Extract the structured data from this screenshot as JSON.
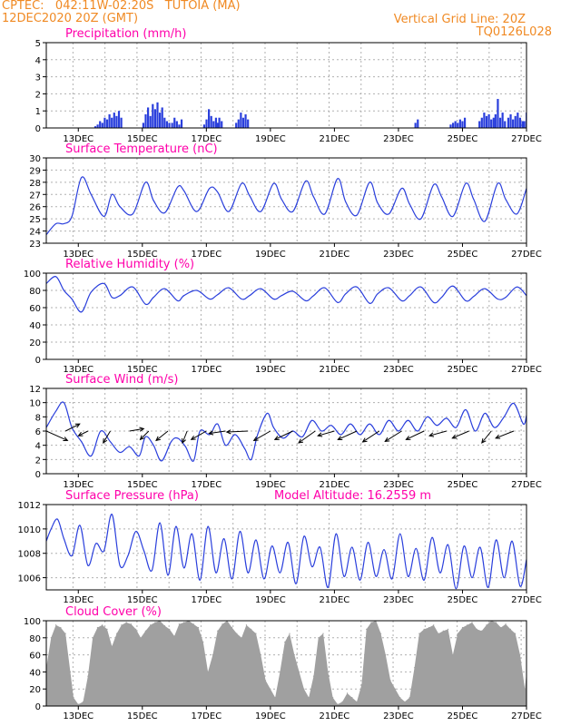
{
  "header": {
    "line1_left": "CPTEC:   042:11W-02:20S   TUTOIA (MA)",
    "line2_left": "12DEC2020 20Z (GMT)",
    "line1_right": "Vertical Grid Line: 20Z",
    "line2_right": "TQ0126L028"
  },
  "colors": {
    "line": "#2a3fdc",
    "title": "#ff00aa",
    "header": "#f08a24",
    "cloud": "#a0a0a0",
    "grid": "#b0b0b0"
  },
  "x_ticks": [
    "13DEC",
    "15DEC",
    "17DEC",
    "19DEC",
    "21DEC",
    "23DEC",
    "25DEC",
    "27DEC"
  ],
  "chart_data": [
    {
      "type": "bar",
      "title": "Precipitation (mm/h)",
      "ylim": [
        0,
        5
      ],
      "yticks": [
        "0",
        "1",
        "2",
        "3",
        "4",
        "5"
      ],
      "grid": true,
      "bursts": [
        {
          "day": 13.5,
          "values": [
            0.1,
            0.2,
            0.4,
            0.3,
            0.6,
            0.5,
            0.8,
            0.6,
            0.9,
            0.7,
            1.0,
            0.6
          ]
        },
        {
          "day": 15.0,
          "values": [
            0.3,
            0.8,
            1.2,
            0.7,
            1.4,
            1.1,
            1.5,
            0.9,
            1.2,
            0.6,
            0.4,
            0.3
          ]
        },
        {
          "day": 15.9,
          "values": [
            0.3,
            0.6,
            0.4,
            0.2,
            0.5
          ]
        },
        {
          "day": 16.9,
          "values": [
            0.2,
            0.5,
            1.1,
            0.7,
            0.4,
            0.6,
            0.3
          ]
        },
        {
          "day": 17.3,
          "values": [
            0.3,
            0.6,
            0.4
          ]
        },
        {
          "day": 17.9,
          "values": [
            0.3,
            0.5,
            0.9,
            0.6,
            0.8,
            0.5
          ]
        },
        {
          "day": 23.5,
          "values": [
            0.3,
            0.5
          ]
        },
        {
          "day": 24.6,
          "values": [
            0.2,
            0.3,
            0.4,
            0.3,
            0.5,
            0.4,
            0.6
          ]
        },
        {
          "day": 25.5,
          "values": [
            0.4,
            0.6,
            0.9,
            0.7,
            0.8,
            0.5,
            0.6
          ]
        },
        {
          "day": 26.0,
          "values": [
            0.8,
            1.7,
            0.6,
            0.9,
            0.4
          ]
        },
        {
          "day": 26.4,
          "values": [
            0.6,
            0.8,
            0.5,
            0.7,
            0.9,
            0.6,
            0.4
          ]
        },
        {
          "day": 26.9,
          "values": [
            0.4,
            0.9,
            0.5
          ]
        }
      ]
    },
    {
      "type": "line",
      "title": "Surface Temperature (nC)",
      "ylim": [
        23,
        30
      ],
      "yticks": [
        "23",
        "24",
        "25",
        "26",
        "27",
        "28",
        "29",
        "30"
      ],
      "grid": true,
      "x": [
        12.0,
        12.3,
        12.55,
        12.8,
        13.1,
        13.4,
        13.8,
        14.05,
        14.3,
        14.7,
        15.1,
        15.35,
        15.7,
        16.1,
        16.3,
        16.7,
        17.1,
        17.35,
        17.7,
        18.1,
        18.35,
        18.7,
        19.1,
        19.35,
        19.7,
        20.1,
        20.35,
        20.7,
        21.1,
        21.35,
        21.7,
        22.1,
        22.35,
        22.7,
        23.1,
        23.35,
        23.7,
        24.1,
        24.35,
        24.7,
        25.1,
        25.35,
        25.7,
        26.1,
        26.35,
        26.7,
        27.0
      ],
      "values": [
        23.7,
        24.6,
        24.6,
        25.2,
        28.4,
        27.0,
        25.2,
        27.0,
        26.0,
        25.4,
        28.0,
        26.5,
        25.5,
        27.6,
        27.3,
        25.6,
        27.5,
        27.2,
        25.6,
        27.9,
        26.9,
        25.6,
        27.9,
        26.6,
        25.6,
        28.1,
        26.8,
        25.4,
        28.3,
        26.4,
        25.3,
        28.0,
        26.3,
        25.4,
        27.5,
        26.2,
        25.0,
        27.8,
        26.8,
        25.2,
        27.9,
        26.6,
        24.8,
        27.9,
        26.6,
        25.4,
        27.5
      ]
    },
    {
      "type": "line",
      "title": "Relative Humidity (%)",
      "ylim": [
        0,
        100
      ],
      "yticks": [
        "0",
        "20",
        "40",
        "60",
        "80",
        "100"
      ],
      "grid": true,
      "x": [
        12.0,
        12.3,
        12.55,
        12.8,
        13.1,
        13.4,
        13.8,
        14.05,
        14.3,
        14.7,
        15.1,
        15.35,
        15.7,
        16.1,
        16.3,
        16.7,
        17.1,
        17.35,
        17.7,
        18.1,
        18.35,
        18.7,
        19.1,
        19.35,
        19.7,
        20.1,
        20.35,
        20.7,
        21.1,
        21.35,
        21.7,
        22.1,
        22.35,
        22.7,
        23.1,
        23.35,
        23.7,
        24.1,
        24.35,
        24.7,
        25.1,
        25.35,
        25.7,
        26.1,
        26.35,
        26.7,
        27.0
      ],
      "values": [
        88,
        96,
        80,
        70,
        55,
        78,
        88,
        72,
        74,
        84,
        64,
        72,
        82,
        68,
        74,
        80,
        70,
        75,
        83,
        70,
        74,
        82,
        70,
        74,
        79,
        68,
        74,
        83,
        66,
        76,
        84,
        65,
        76,
        83,
        68,
        74,
        84,
        66,
        72,
        85,
        68,
        73,
        82,
        70,
        72,
        84,
        74
      ]
    },
    {
      "type": "line",
      "title": "Surface Wind (m/s)",
      "ylim": [
        0,
        12
      ],
      "yticks": [
        "0",
        "2",
        "4",
        "6",
        "8",
        "10",
        "12"
      ],
      "grid": true,
      "x": [
        12.0,
        12.3,
        12.55,
        12.8,
        13.1,
        13.4,
        13.7,
        14.0,
        14.3,
        14.6,
        14.9,
        15.1,
        15.35,
        15.6,
        15.9,
        16.1,
        16.35,
        16.6,
        16.8,
        17.1,
        17.35,
        17.6,
        17.9,
        18.2,
        18.4,
        18.6,
        18.9,
        19.1,
        19.4,
        19.7,
        20.0,
        20.3,
        20.6,
        20.9,
        21.2,
        21.5,
        21.8,
        22.1,
        22.4,
        22.7,
        23.0,
        23.3,
        23.6,
        23.9,
        24.2,
        24.5,
        24.8,
        25.1,
        25.4,
        25.7,
        26.0,
        26.3,
        26.6,
        26.9,
        27.0
      ],
      "values": [
        6.5,
        8.8,
        10.0,
        6.5,
        4.5,
        2.5,
        6.0,
        4.5,
        3.0,
        3.8,
        2.5,
        5.2,
        4.0,
        1.8,
        4.5,
        5.0,
        3.8,
        1.8,
        6.0,
        5.5,
        7.0,
        4.0,
        5.5,
        3.5,
        2.0,
        5.5,
        8.5,
        6.5,
        5.0,
        6.0,
        5.2,
        7.5,
        6.0,
        6.8,
        5.5,
        7.0,
        5.5,
        7.0,
        5.5,
        7.5,
        6.0,
        7.5,
        6.0,
        8.0,
        6.8,
        7.8,
        6.5,
        9.0,
        6.0,
        8.5,
        6.5,
        8.0,
        9.9,
        7.0,
        8.2
      ],
      "arrows": [
        {
          "day": 12.0,
          "u": 4.5,
          "v": -2.0
        },
        {
          "day": 12.6,
          "u": 3.0,
          "v": 1.5
        },
        {
          "day": 13.3,
          "u": -2.0,
          "v": -1.0
        },
        {
          "day": 14.0,
          "u": -1.5,
          "v": -2.5
        },
        {
          "day": 14.6,
          "u": 3.0,
          "v": 0.5
        },
        {
          "day": 15.2,
          "u": -1.8,
          "v": -1.8
        },
        {
          "day": 15.8,
          "u": -2.5,
          "v": -2.0
        },
        {
          "day": 16.4,
          "u": -1.0,
          "v": -2.5
        },
        {
          "day": 17.0,
          "u": -3.2,
          "v": -1.8
        },
        {
          "day": 17.6,
          "u": -3.5,
          "v": -0.5
        },
        {
          "day": 18.3,
          "u": -4.5,
          "v": -0.2
        },
        {
          "day": 19.0,
          "u": -3.5,
          "v": -2.0
        },
        {
          "day": 19.7,
          "u": -3.8,
          "v": -1.8
        },
        {
          "day": 20.4,
          "u": -3.5,
          "v": -2.5
        },
        {
          "day": 21.0,
          "u": -3.5,
          "v": -1.0
        },
        {
          "day": 21.7,
          "u": -4.0,
          "v": -1.8
        },
        {
          "day": 22.4,
          "u": -3.5,
          "v": -2.3
        },
        {
          "day": 23.1,
          "u": -3.5,
          "v": -2.2
        },
        {
          "day": 23.8,
          "u": -3.8,
          "v": -1.8
        },
        {
          "day": 24.5,
          "u": -3.6,
          "v": -1.0
        },
        {
          "day": 25.2,
          "u": -3.5,
          "v": -1.5
        },
        {
          "day": 25.9,
          "u": -2.0,
          "v": -2.5
        },
        {
          "day": 26.6,
          "u": -3.8,
          "v": -1.5
        }
      ]
    },
    {
      "type": "line",
      "title": "Surface Pressure (hPa)",
      "annotation": "Model Altitude: 16.2559 m",
      "ylim": [
        1005,
        1012
      ],
      "yticks": [
        "1006",
        "1008",
        "1010",
        "1012"
      ],
      "ytick_values": [
        1006,
        1008,
        1010,
        1012
      ],
      "grid": true,
      "x": [
        12.0,
        12.15,
        12.35,
        12.55,
        12.8,
        13.05,
        13.3,
        13.55,
        13.8,
        14.05,
        14.3,
        14.55,
        14.8,
        15.05,
        15.3,
        15.55,
        15.8,
        16.05,
        16.3,
        16.55,
        16.8,
        17.05,
        17.3,
        17.55,
        17.8,
        18.05,
        18.3,
        18.55,
        18.8,
        19.05,
        19.3,
        19.55,
        19.8,
        20.05,
        20.3,
        20.55,
        20.8,
        21.05,
        21.3,
        21.55,
        21.8,
        22.05,
        22.3,
        22.55,
        22.8,
        23.05,
        23.3,
        23.55,
        23.8,
        24.05,
        24.3,
        24.55,
        24.8,
        25.05,
        25.3,
        25.55,
        25.8,
        26.05,
        26.3,
        26.55,
        26.8,
        27.0
      ],
      "values": [
        1009.0,
        1010.0,
        1010.8,
        1009.2,
        1007.8,
        1010.3,
        1007.0,
        1008.8,
        1008.2,
        1011.2,
        1007.0,
        1007.8,
        1009.8,
        1008.2,
        1006.6,
        1010.5,
        1006.2,
        1010.2,
        1006.8,
        1009.6,
        1005.8,
        1010.2,
        1006.4,
        1009.2,
        1005.9,
        1009.8,
        1006.4,
        1009.1,
        1005.9,
        1008.6,
        1006.4,
        1008.9,
        1005.5,
        1009.4,
        1006.9,
        1008.5,
        1005.2,
        1009.6,
        1006.1,
        1008.5,
        1005.8,
        1008.9,
        1006.1,
        1008.3,
        1005.9,
        1009.6,
        1006.1,
        1008.4,
        1005.8,
        1009.3,
        1006.4,
        1008.7,
        1005.1,
        1008.6,
        1006.0,
        1008.5,
        1005.2,
        1009.1,
        1006.0,
        1009.0,
        1005.3,
        1007.5
      ]
    },
    {
      "type": "area",
      "title": "Cloud Cover (%)",
      "ylim": [
        0,
        100
      ],
      "yticks": [
        "0",
        "20",
        "40",
        "60",
        "80",
        "100"
      ],
      "grid": true,
      "x": [
        12.0,
        12.15,
        12.3,
        12.45,
        12.6,
        12.75,
        12.85,
        13.0,
        13.15,
        13.3,
        13.45,
        13.6,
        13.75,
        13.9,
        14.05,
        14.2,
        14.35,
        14.5,
        14.65,
        14.8,
        14.95,
        15.1,
        15.25,
        15.4,
        15.55,
        15.7,
        15.85,
        16.0,
        16.15,
        16.3,
        16.45,
        16.6,
        16.75,
        16.9,
        17.05,
        17.2,
        17.35,
        17.5,
        17.65,
        17.8,
        17.95,
        18.1,
        18.25,
        18.4,
        18.55,
        18.7,
        18.85,
        19.0,
        19.15,
        19.3,
        19.45,
        19.6,
        19.75,
        19.9,
        20.05,
        20.2,
        20.35,
        20.5,
        20.65,
        20.8,
        20.95,
        21.1,
        21.25,
        21.4,
        21.55,
        21.7,
        21.85,
        22.0,
        22.15,
        22.3,
        22.45,
        22.6,
        22.75,
        22.9,
        23.05,
        23.2,
        23.35,
        23.5,
        23.65,
        23.8,
        23.95,
        24.1,
        24.25,
        24.4,
        24.55,
        24.7,
        24.85,
        25.0,
        25.15,
        25.3,
        25.45,
        25.6,
        25.75,
        25.9,
        26.05,
        26.2,
        26.35,
        26.5,
        26.65,
        26.8,
        26.95,
        27.0
      ],
      "values": [
        45,
        80,
        95,
        92,
        85,
        40,
        10,
        2,
        5,
        35,
        80,
        92,
        95,
        90,
        70,
        85,
        95,
        98,
        96,
        90,
        80,
        88,
        95,
        98,
        100,
        94,
        90,
        82,
        96,
        98,
        100,
        96,
        92,
        75,
        40,
        60,
        88,
        96,
        100,
        92,
        85,
        80,
        95,
        90,
        85,
        60,
        30,
        20,
        10,
        40,
        75,
        85,
        60,
        40,
        20,
        10,
        35,
        80,
        85,
        40,
        10,
        2,
        5,
        15,
        10,
        5,
        25,
        90,
        98,
        100,
        85,
        60,
        30,
        20,
        10,
        5,
        10,
        45,
        85,
        90,
        92,
        95,
        85,
        88,
        90,
        60,
        85,
        92,
        95,
        98,
        90,
        88,
        95,
        100,
        98,
        92,
        96,
        90,
        85,
        60,
        20,
        40
      ]
    }
  ]
}
